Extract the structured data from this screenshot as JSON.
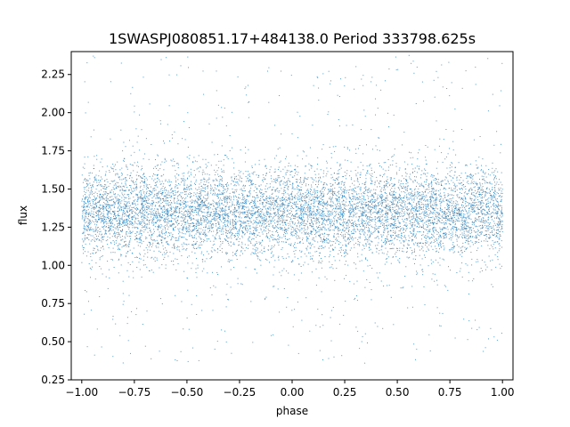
{
  "chart_data": {
    "type": "scatter",
    "title": "1SWASPJ080851.17+484138.0 Period 333798.625s",
    "xlabel": "phase",
    "ylabel": "flux",
    "xlim": [
      -1.05,
      1.05
    ],
    "ylim": [
      0.25,
      2.4
    ],
    "xticks": [
      -1.0,
      -0.75,
      -0.5,
      -0.25,
      0.0,
      0.25,
      0.5,
      0.75,
      1.0
    ],
    "xtick_labels": [
      "−1.00",
      "−0.75",
      "−0.50",
      "−0.25",
      "0.00",
      "0.25",
      "0.50",
      "0.75",
      "1.00"
    ],
    "yticks": [
      0.25,
      0.5,
      0.75,
      1.0,
      1.25,
      1.5,
      1.75,
      2.0,
      2.25
    ],
    "ytick_labels": [
      "0.25",
      "0.50",
      "0.75",
      "1.00",
      "1.25",
      "1.50",
      "1.75",
      "2.00",
      "2.25"
    ],
    "grid": false,
    "marker_color": "#1f77b4",
    "series": [
      {
        "description_of_distribution": "dense band of points",
        "x_range": [
          -1.0,
          1.0
        ],
        "core_band": [
          1.05,
          1.7
        ],
        "center": 1.35,
        "outlier_range": [
          0.35,
          2.38
        ]
      }
    ]
  }
}
